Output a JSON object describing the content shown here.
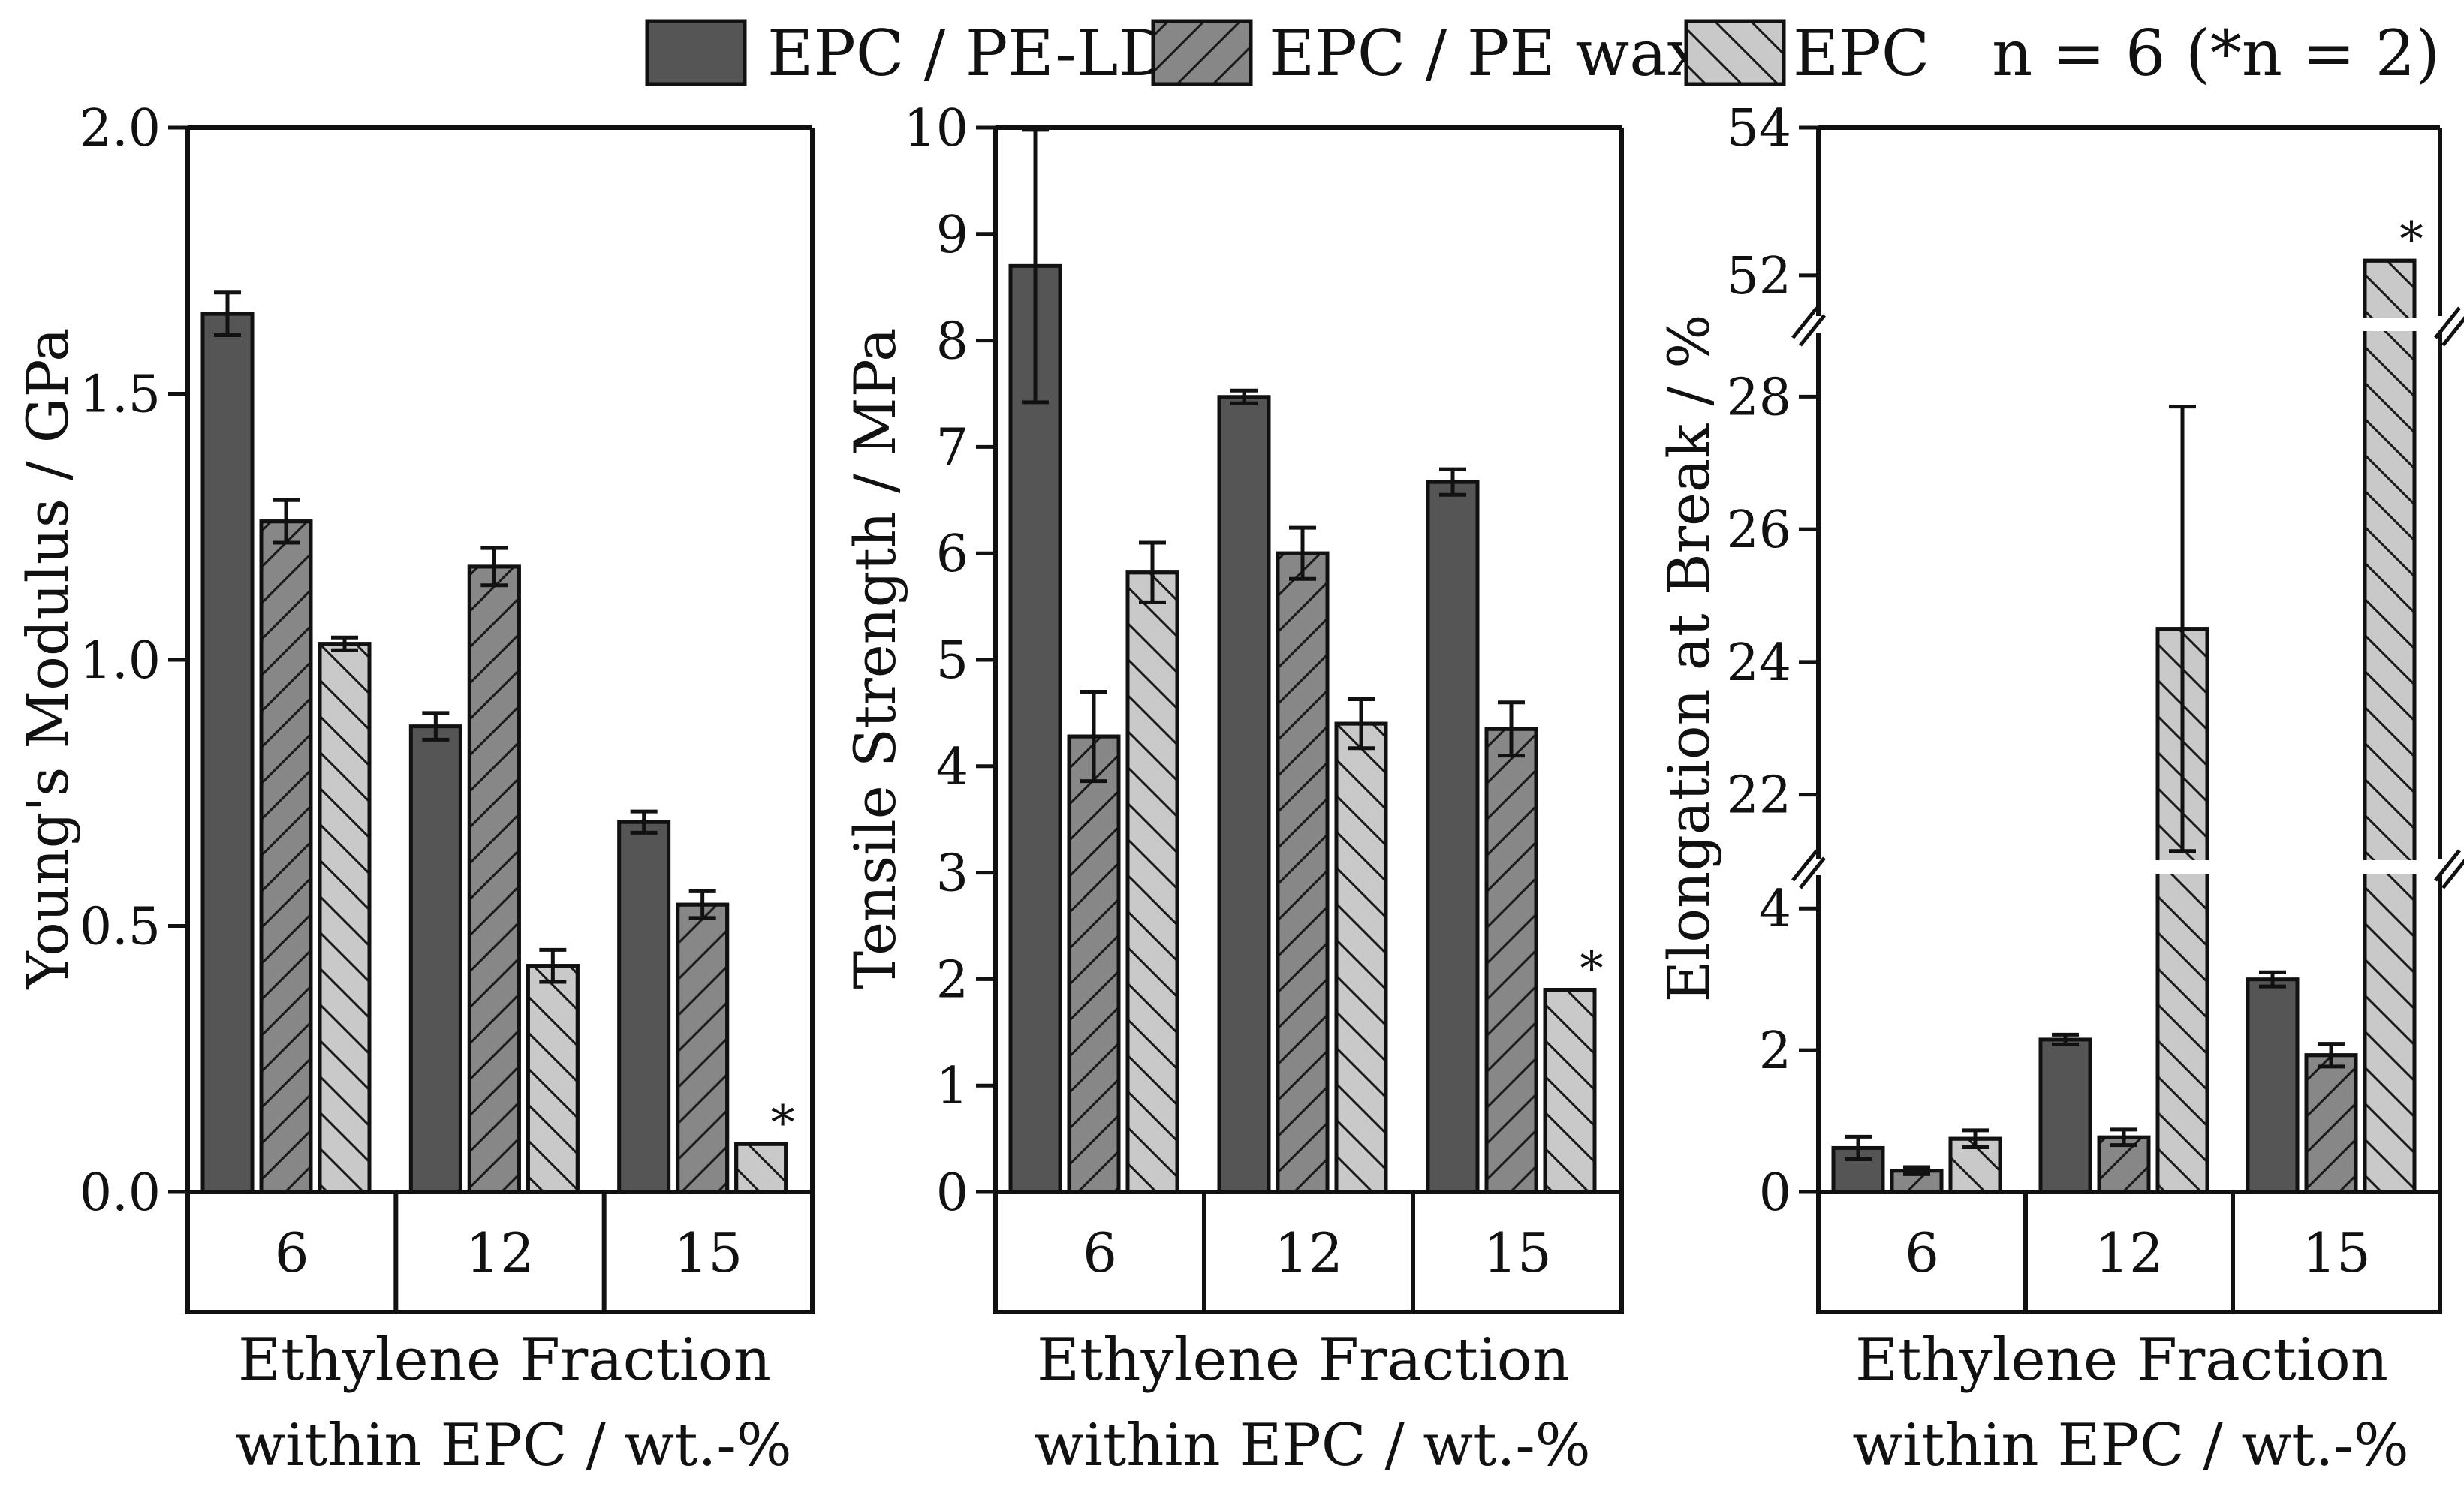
{
  "legend": {
    "items": [
      {
        "label": "EPC / PE-LD",
        "fill": "#555555",
        "pattern": "none"
      },
      {
        "label": "EPC / PE wax",
        "fill": "#878787",
        "pattern": "forward"
      },
      {
        "label": "EPC",
        "fill": "#c9c9c9",
        "pattern": "back"
      }
    ],
    "note": "n = 6 (*n = 2)"
  },
  "chart_data": [
    {
      "type": "bar",
      "ylabel": "Young's Modulus / GPa",
      "xlabel_lines": [
        "Ethylene Fraction",
        "within EPC / wt.-%"
      ],
      "categories": [
        "6",
        "12",
        "15"
      ],
      "ylim": [
        0,
        2.0
      ],
      "yticks": [
        "0.0",
        "0.5",
        "1.0",
        "1.5",
        "2.0"
      ],
      "series": [
        {
          "name": "EPC / PE-LD",
          "values": [
            1.65,
            0.875,
            0.695
          ],
          "errors": [
            0.04,
            0.025,
            0.02
          ]
        },
        {
          "name": "EPC / PE wax",
          "values": [
            1.26,
            1.175,
            0.54
          ],
          "errors": [
            0.04,
            0.035,
            0.025
          ]
        },
        {
          "name": "EPC",
          "values": [
            1.03,
            0.425,
            0.09
          ],
          "errors": [
            0.012,
            0.03,
            null
          ]
        }
      ],
      "annotations": [
        {
          "text": "*",
          "series": 2,
          "category": 2
        }
      ]
    },
    {
      "type": "bar",
      "ylabel": "Tensile Strength / MPa",
      "xlabel_lines": [
        "Ethylene Fraction",
        "within EPC / wt.-%"
      ],
      "categories": [
        "6",
        "12",
        "15"
      ],
      "ylim": [
        0,
        10
      ],
      "yticks": [
        "0",
        "1",
        "2",
        "3",
        "4",
        "5",
        "6",
        "7",
        "8",
        "9",
        "10"
      ],
      "series": [
        {
          "name": "EPC / PE-LD",
          "values": [
            8.7,
            7.47,
            6.67
          ],
          "errors": [
            1.28,
            0.06,
            0.12
          ]
        },
        {
          "name": "EPC / PE wax",
          "values": [
            4.28,
            6.0,
            4.35
          ],
          "errors": [
            0.42,
            0.24,
            0.25
          ]
        },
        {
          "name": "EPC",
          "values": [
            5.82,
            4.4,
            1.9
          ],
          "errors": [
            0.28,
            0.23,
            null
          ]
        }
      ],
      "annotations": [
        {
          "text": "*",
          "series": 2,
          "category": 2
        }
      ]
    },
    {
      "type": "bar",
      "ylabel": "Elongation at Break / %",
      "xlabel_lines": [
        "Ethylene Fraction",
        "within EPC / wt.-%"
      ],
      "categories": [
        "6",
        "12",
        "15"
      ],
      "axis_break": true,
      "y_segments": [
        {
          "range": [
            0,
            4.5
          ],
          "ticks": [
            "0",
            "2",
            "4"
          ]
        },
        {
          "range": [
            21,
            29
          ],
          "ticks": [
            "22",
            "24",
            "26",
            "28"
          ]
        },
        {
          "range": [
            51.4,
            54
          ],
          "ticks": [
            "52",
            "54"
          ]
        }
      ],
      "series": [
        {
          "name": "EPC / PE-LD",
          "values": [
            0.62,
            2.15,
            3.0
          ],
          "errors": [
            0.16,
            0.07,
            0.1
          ]
        },
        {
          "name": "EPC / PE wax",
          "values": [
            0.3,
            0.77,
            1.93
          ],
          "errors": [
            0.05,
            0.11,
            0.16
          ]
        },
        {
          "name": "EPC",
          "values": [
            0.75,
            24.5,
            52.2
          ],
          "errors": [
            0.12,
            3.35,
            null
          ]
        }
      ],
      "annotations": [
        {
          "text": "*",
          "series": 2,
          "category": 2
        }
      ]
    }
  ]
}
